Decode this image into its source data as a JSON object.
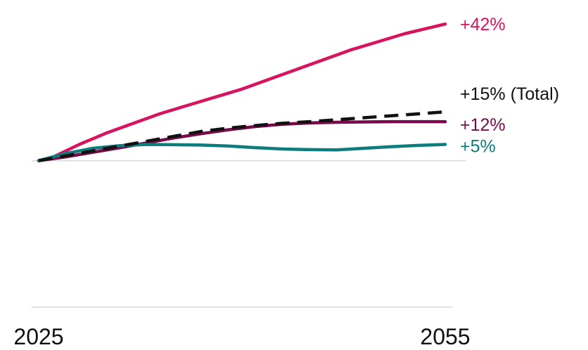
{
  "chart_data": {
    "type": "line",
    "title": "",
    "xlabel": "",
    "ylabel": "",
    "x_ticks": [
      "2025",
      "2055"
    ],
    "xlim": [
      2025,
      2055
    ],
    "ylim": [
      -45,
      47
    ],
    "grid": {
      "baseline_at": 0,
      "bottom_line_at": -45
    },
    "series": [
      {
        "end_label": "+42%",
        "color": "#d6145f",
        "style": "solid",
        "x": [
          2025,
          2026,
          2028,
          2030,
          2032,
          2034,
          2036,
          2038,
          2040,
          2042,
          2044,
          2046,
          2048,
          2050,
          2052,
          2054,
          2055
        ],
        "values": [
          0,
          1,
          5,
          8.5,
          11.5,
          14.5,
          17,
          19.5,
          22,
          25,
          28,
          31,
          34,
          36.5,
          39,
          41,
          42
        ]
      },
      {
        "end_label": "+15% (Total)",
        "color": "#111111",
        "style": "dashed",
        "x": [
          2025,
          2027,
          2029,
          2031,
          2033,
          2035,
          2037,
          2039,
          2041,
          2043,
          2045,
          2047,
          2049,
          2051,
          2053,
          2055
        ],
        "values": [
          0,
          1.5,
          3,
          4.5,
          6,
          7.5,
          9,
          10,
          10.8,
          11.5,
          12,
          12.6,
          13.2,
          13.8,
          14.4,
          15
        ]
      },
      {
        "end_label": "+12%",
        "color": "#7a0a4c",
        "style": "solid",
        "x": [
          2025,
          2027,
          2029,
          2031,
          2033,
          2035,
          2037,
          2039,
          2041,
          2043,
          2045,
          2047,
          2049,
          2051,
          2053,
          2055
        ],
        "values": [
          0,
          1.2,
          2.6,
          4,
          5.5,
          7,
          8.3,
          9.5,
          10.5,
          11.2,
          11.6,
          11.8,
          11.9,
          12,
          12,
          12
        ]
      },
      {
        "end_label": "+5%",
        "color": "#0e7c7b",
        "style": "solid",
        "x": [
          2025,
          2027,
          2029,
          2031,
          2033,
          2035,
          2037,
          2039,
          2041,
          2043,
          2045,
          2047,
          2049,
          2051,
          2053,
          2055
        ],
        "values": [
          0,
          2.2,
          3.8,
          4.6,
          5,
          4.9,
          4.8,
          4.5,
          4,
          3.6,
          3.4,
          3.3,
          3.8,
          4.3,
          4.7,
          5
        ]
      }
    ]
  }
}
